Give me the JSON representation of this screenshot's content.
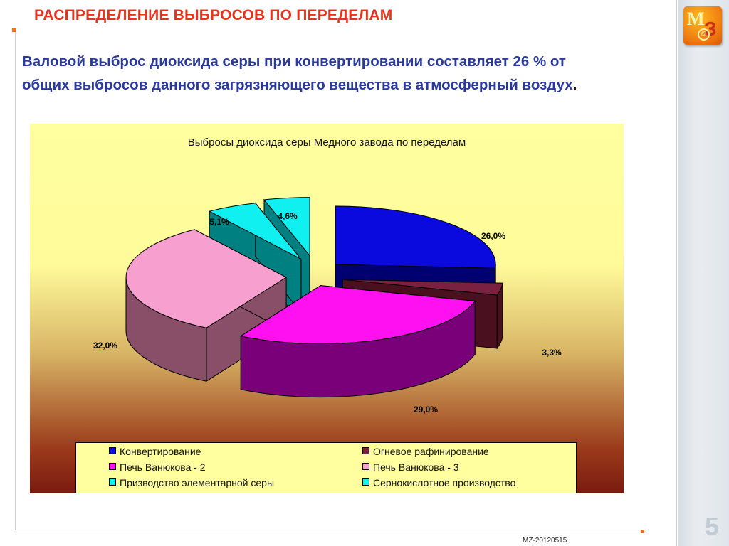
{
  "slide": {
    "title": "РАСПРЕДЕЛЕНИЕ ВЫБРОСОВ ПО ПЕРЕДЕЛАМ",
    "subtitle_line1": "Валовой выброс диоксида серы при конвертировании составляет 26 % от",
    "subtitle_line2": "общих выбросов данного загрязняющего вещества в атмосферный воздух",
    "subtitle_end": ".",
    "page_number": "5",
    "footer_code": "MZ-20120515",
    "logo": {
      "letter_m": "М",
      "letter_z": "З",
      "copyright": "©"
    },
    "accent_color": "#e8331c",
    "subtitle_color": "#2a3a9c",
    "bullet_color": "#ff6a13"
  },
  "chart_data": {
    "type": "pie",
    "title": "Выбросы диоксида серы  Медного завода по переделам",
    "three_d": true,
    "exploded": true,
    "legend_position": "bottom",
    "categories": [
      "Конвертирование",
      "Огневое рафинирование",
      "Печь Ванюкова - 2",
      "Печь Ванюкова - 3",
      "Призводство элементарной серы",
      "Сернокислотное производство"
    ],
    "values": [
      26.0,
      3.3,
      29.0,
      32.0,
      5.1,
      4.6
    ],
    "labels": [
      "26,0%",
      "3,3%",
      "29,0%",
      "32,0%",
      "5,1%",
      "4,6%"
    ],
    "colors": [
      "#0a0adf",
      "#7a2040",
      "#ff10f0",
      "#f7a0d0",
      "#10f0f0",
      "#10f0f0"
    ],
    "side_colors": [
      "#000070",
      "#4a1020",
      "#7a007a",
      "#8a4f68",
      "#008080",
      "#008080"
    ]
  }
}
